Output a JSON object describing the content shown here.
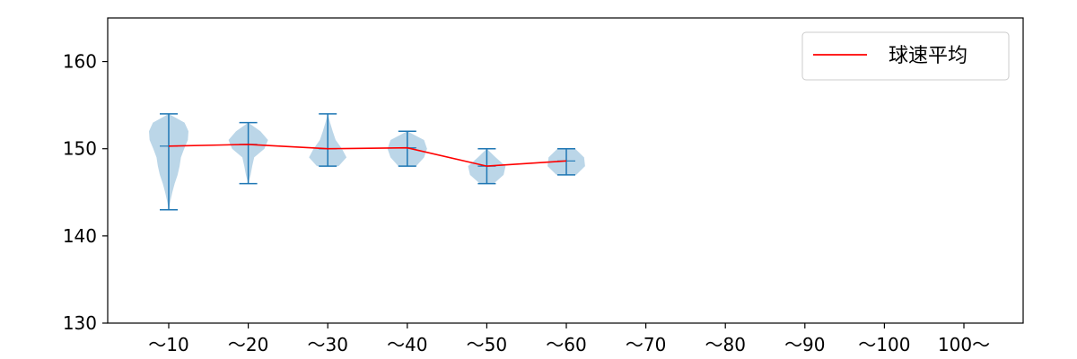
{
  "chart_data": {
    "type": "violin",
    "categories": [
      "～10",
      "～20",
      "～30",
      "～40",
      "～50",
      "～60",
      "～70",
      "～80",
      "～90",
      "～100",
      "100～"
    ],
    "ylim": [
      130,
      165
    ],
    "yticks": [
      130,
      140,
      150,
      160
    ],
    "series": [
      {
        "name": "球速平均",
        "kind": "line",
        "color": "#ff0000",
        "values": [
          150.3,
          150.5,
          150.0,
          150.1,
          148.0,
          148.6,
          null,
          null,
          null,
          null,
          null
        ]
      }
    ],
    "distributions": [
      {
        "category": "～10",
        "min": 143,
        "max": 154,
        "profile": [
          [
            143,
            0.0
          ],
          [
            144,
            0.08
          ],
          [
            145,
            0.18
          ],
          [
            146,
            0.3
          ],
          [
            147,
            0.45
          ],
          [
            148,
            0.55
          ],
          [
            149,
            0.62
          ],
          [
            150,
            0.78
          ],
          [
            151,
            0.97
          ],
          [
            152,
            1.0
          ],
          [
            153,
            0.8
          ],
          [
            154,
            0.0
          ]
        ]
      },
      {
        "category": "～20",
        "min": 146,
        "max": 153,
        "profile": [
          [
            146,
            0.0
          ],
          [
            147,
            0.12
          ],
          [
            148,
            0.2
          ],
          [
            149,
            0.3
          ],
          [
            150,
            0.82
          ],
          [
            151,
            1.0
          ],
          [
            152,
            0.62
          ],
          [
            153,
            0.0
          ]
        ]
      },
      {
        "category": "～30",
        "min": 148,
        "max": 154,
        "profile": [
          [
            148,
            0.55
          ],
          [
            149,
            0.95
          ],
          [
            150,
            0.72
          ],
          [
            151,
            0.4
          ],
          [
            152,
            0.25
          ],
          [
            153,
            0.12
          ],
          [
            154,
            0.0
          ]
        ]
      },
      {
        "category": "～40",
        "min": 148,
        "max": 152,
        "profile": [
          [
            148,
            0.45
          ],
          [
            149,
            0.85
          ],
          [
            150,
            1.0
          ],
          [
            151,
            0.85
          ],
          [
            152,
            0.0
          ]
        ]
      },
      {
        "category": "～50",
        "min": 146,
        "max": 150,
        "profile": [
          [
            146,
            0.35
          ],
          [
            147,
            0.85
          ],
          [
            148,
            0.95
          ],
          [
            149,
            0.45
          ],
          [
            150,
            0.0
          ]
        ]
      },
      {
        "category": "～60",
        "min": 147,
        "max": 150,
        "profile": [
          [
            147,
            0.5
          ],
          [
            148,
            0.95
          ],
          [
            149,
            0.9
          ],
          [
            150,
            0.45
          ]
        ]
      }
    ],
    "violin_color": "#1f77b4",
    "legend": {
      "position": "top-right",
      "label": "球速平均"
    },
    "grid": false
  }
}
